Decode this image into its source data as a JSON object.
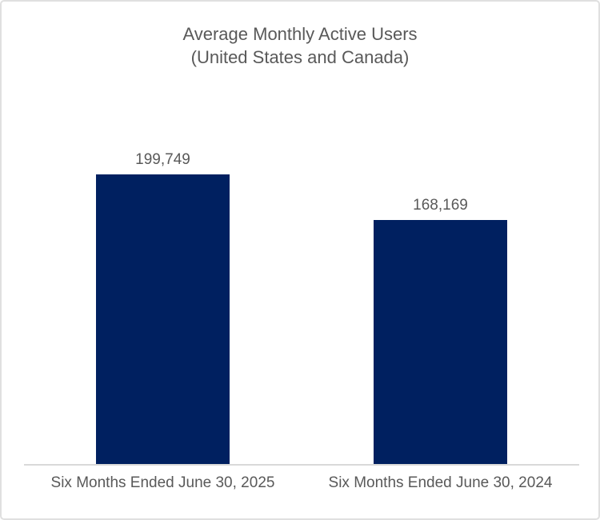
{
  "frame": {
    "background": "#ffffff",
    "border_color": "#e0e0e0"
  },
  "chart_data": {
    "type": "bar",
    "title_line1": "Average Monthly Active Users",
    "title_line2": "(United States and Canada)",
    "categories": [
      "Six Months Ended June 30, 2025",
      "Six Months Ended June 30, 2024"
    ],
    "values": [
      199749,
      168169
    ],
    "value_labels": [
      "199,749",
      "168,169"
    ],
    "ylim": [
      0,
      250000
    ],
    "bar_color": "#002060",
    "text_color": "#595959",
    "axis_line_color": "#d9d9d9",
    "grid": false,
    "legend": false,
    "xlabel": "",
    "ylabel": ""
  }
}
